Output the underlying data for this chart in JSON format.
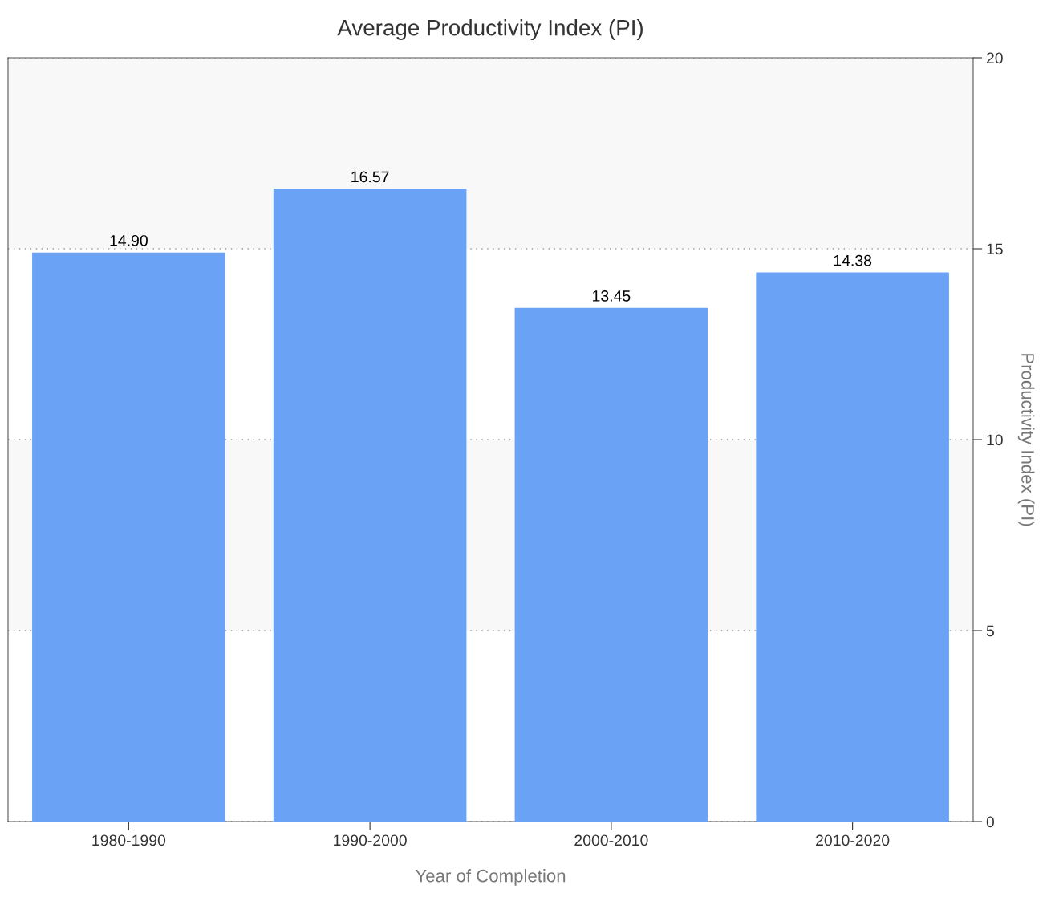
{
  "chart_data": {
    "type": "bar",
    "title": "Average Productivity Index (PI)",
    "xlabel": "Year of Completion",
    "ylabel": "Productivity Index (PI)",
    "categories": [
      "1980-1990",
      "1990-2000",
      "2000-2010",
      "2010-2020"
    ],
    "values": [
      14.9,
      16.57,
      13.45,
      14.38
    ],
    "color": "#6aa3f5",
    "value_labels": [
      "14.90",
      "16.57",
      "13.45",
      "14.38"
    ],
    "ylim": [
      0,
      20
    ],
    "yticks": [
      0,
      5,
      10,
      15,
      20
    ],
    "grid": "y",
    "bands": [
      {
        "axis": "y",
        "from": 5,
        "to": 10,
        "color": "#f8f8f8"
      },
      {
        "axis": "y",
        "from": 15,
        "to": 20,
        "color": "#f8f8f8"
      }
    ]
  }
}
